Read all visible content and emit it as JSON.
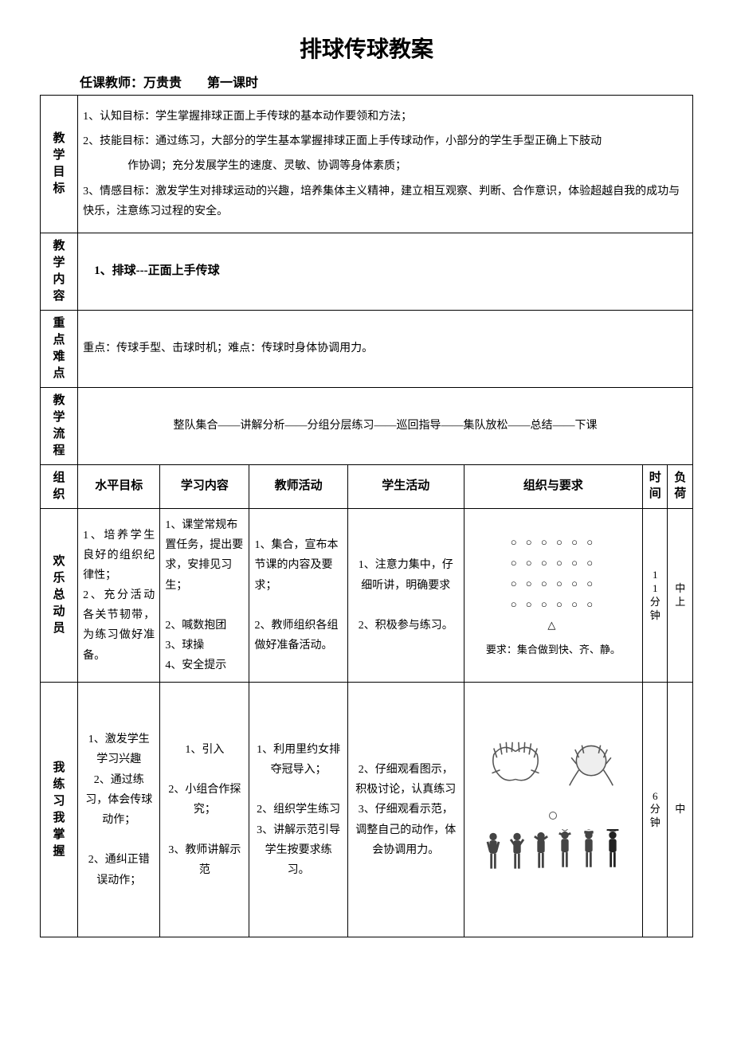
{
  "title": "排球传球教案",
  "sub_title": "任课教师：万贵贵　　第一课时",
  "sections": {
    "goals": {
      "label": "教学目标",
      "lines": [
        "1、认知目标：学生掌握排球正面上手传球的基本动作要领和方法；",
        "2、技能目标：通过练习，大部分的学生基本掌握排球正面上手传球动作，小部分的学生手型正确上下肢动",
        "作协调；充分发展学生的速度、灵敏、协调等身体素质；",
        "3、情感目标：激发学生对排球运动的兴趣，培养集体主义精神，建立相互观察、判断、合作意识，体验超越自我的成功与快乐，注意练习过程的安全。"
      ]
    },
    "content": {
      "label": "教学内容",
      "text": "1、排球---正面上手传球"
    },
    "keypoints": {
      "label": "重点难点",
      "text": "重点：传球手型、击球时机；难点：传球时身体协调用力。"
    },
    "flow": {
      "label": "教学流程",
      "text": "整队集合——讲解分析——分组分层练习——巡回指导——集队放松——总结——下课"
    }
  },
  "grid_header": {
    "org": "组织",
    "level": "水平目标",
    "study": "学习内容",
    "teacher": "教师活动",
    "student": "学生活动",
    "req": "组织与要求",
    "time": "时间",
    "load": "负荷"
  },
  "rows": [
    {
      "org": "欢乐总动员",
      "level": "1、培养学生良好的组织纪律性；\n2、充分活动各关节韧带，为练习做好准备。",
      "study": "1、课堂常规布置任务，提出要求，安排见习生；\n\n2、喊数抱团\n3、球操\n4、安全提示",
      "teacher": "1、集合，宣布本节课的内容及要求；\n\n2、教师组织各组做好准备活动。",
      "student": "1、注意力集中，仔细听讲，明确要求\n\n2、积极参与练习。",
      "formation_rows": [
        "○ ○ ○ ○ ○ ○",
        "○ ○ ○ ○ ○ ○",
        "○ ○ ○ ○ ○ ○",
        "○ ○ ○ ○ ○ ○",
        "△"
      ],
      "req_text": "要求：集合做到快、齐、静。",
      "time": "11分钟",
      "load": "中上"
    },
    {
      "org": "我练习我掌握",
      "level": "1、激发学生学习兴趣\n2、通过练习，体会传球动作；\n\n2、通纠正错误动作；",
      "study": "1、引入\n\n2、小组合作探究；\n\n3、教师讲解示范",
      "teacher": "1、利用里约女排夺冠导入；\n\n2、组织学生练习\n3、讲解示范引导学生按要求练习。",
      "student": "2、仔细观看图示，积极讨论，认真练习\n3、仔细观看示范，调整自己的动作，体会协调用力。",
      "time": "6分钟",
      "load": "中"
    }
  ],
  "colors": {
    "border": "#000000",
    "text": "#000000",
    "bg": "#ffffff",
    "illustration_stroke": "#555555"
  },
  "col_widths": {
    "label": 42,
    "level": 92,
    "study": 100,
    "teacher": 110,
    "student": 130,
    "req": 200,
    "time": 28,
    "load": 28
  }
}
